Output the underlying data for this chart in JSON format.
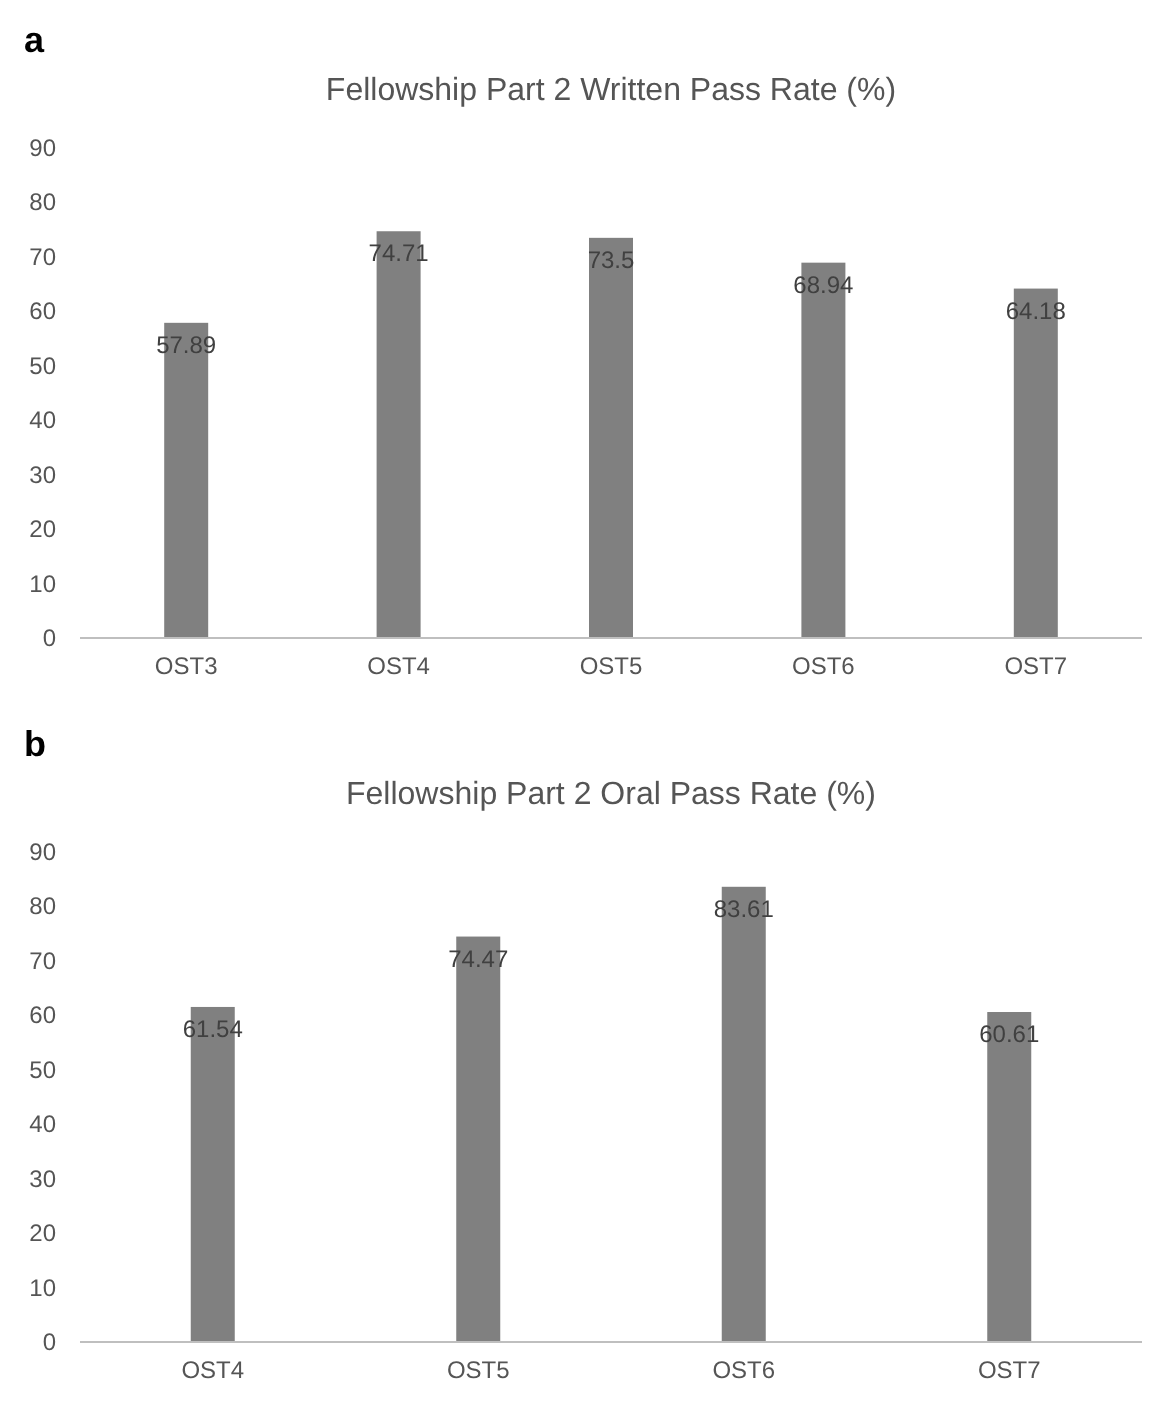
{
  "chart_data": [
    {
      "type": "bar",
      "title": "Fellowship Part 2 Written Pass Rate (%)",
      "annotations": [
        "a"
      ],
      "categories": [
        "OST3",
        "OST4",
        "OST5",
        "OST6",
        "OST7"
      ],
      "values": [
        57.89,
        74.71,
        73.5,
        68.94,
        64.18
      ],
      "color": "#808080",
      "ylim": [
        0,
        90
      ],
      "yticks": [
        0,
        10,
        20,
        30,
        40,
        50,
        60,
        70,
        80,
        90
      ],
      "data_labels": true
    },
    {
      "type": "bar",
      "title": "Fellowship Part 2 Oral Pass Rate (%)",
      "annotations": [
        "b"
      ],
      "categories": [
        "OST4",
        "OST5",
        "OST6",
        "OST7"
      ],
      "values": [
        61.54,
        74.47,
        83.61,
        60.61
      ],
      "color": "#808080",
      "ylim": [
        0,
        90
      ],
      "yticks": [
        0,
        10,
        20,
        30,
        40,
        50,
        60,
        70,
        80,
        90
      ],
      "data_labels": true
    }
  ]
}
